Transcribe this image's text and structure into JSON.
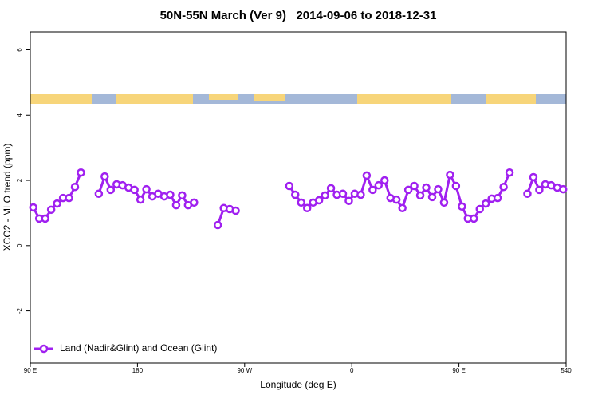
{
  "chart_data": {
    "type": "line",
    "title": "50N-55N March (Ver 9)   2014-09-06 to 2018-12-31",
    "xlabel": "Longitude (deg E)",
    "ylabel": "XCO2 - MLO trend (ppm)",
    "x": [
      92.5,
      97.5,
      102.5,
      107.5,
      112.5,
      117.5,
      122.5,
      127.5,
      132.5,
      137.5,
      147.5,
      152.5,
      157.5,
      162.5,
      167.5,
      172.5,
      177.5,
      182.5,
      187.5,
      192.5,
      197.5,
      202.5,
      207.5,
      212.5,
      217.5,
      222.5,
      227.5,
      237.5,
      247.5,
      252.5,
      257.5,
      262.5,
      285,
      307.5,
      312.5,
      317.5,
      322.5,
      327.5,
      332.5,
      337.5,
      342.5,
      347.5,
      352.5,
      357.5,
      362.5,
      367.5,
      372.5,
      377.5,
      382.5,
      387.5,
      392.5,
      397.5,
      402.5,
      407.5,
      412.5,
      417.5,
      422.5,
      427.5,
      432.5,
      437.5,
      442.5,
      447.5,
      452.5,
      457.5,
      462.5,
      467.5,
      472.5,
      477.5,
      482.5,
      487.5,
      492.5,
      500,
      507.5,
      512.5,
      517.5,
      522.5,
      527.5,
      532.5,
      537.5
    ],
    "series": [
      {
        "name": "Land (Nadir&Glint) and Ocean (Glint)",
        "color": "#a020f0",
        "values": [
          1.17,
          0.83,
          0.83,
          1.1,
          1.29,
          1.46,
          1.46,
          1.8,
          2.24,
          null,
          1.59,
          2.12,
          1.71,
          1.88,
          1.85,
          1.78,
          1.71,
          1.41,
          1.73,
          1.51,
          1.59,
          1.51,
          1.56,
          1.24,
          1.54,
          1.24,
          1.32,
          null,
          0.63,
          1.15,
          1.12,
          1.07,
          null,
          1.83,
          1.56,
          1.32,
          1.15,
          1.32,
          1.39,
          1.54,
          1.76,
          1.56,
          1.59,
          1.37,
          1.59,
          1.56,
          2.15,
          1.71,
          1.85,
          2.0,
          1.46,
          1.41,
          1.15,
          1.71,
          1.83,
          1.54,
          1.78,
          1.49,
          1.73,
          1.32,
          2.17,
          1.83,
          1.2,
          0.83,
          0.83,
          1.12,
          1.29,
          1.44,
          1.46,
          1.8,
          2.24,
          null,
          1.59,
          2.1,
          1.71,
          1.88,
          1.85,
          1.78,
          1.73
        ]
      }
    ],
    "xlim": [
      90,
      540
    ],
    "xticks": [
      {
        "value": 90,
        "label": "90 E"
      },
      180,
      {
        "value": 270,
        "label": "90 W"
      },
      {
        "value": 360,
        "label": "0"
      },
      {
        "value": 450,
        "label": "90 E"
      },
      540
    ],
    "ylim": [
      -3.6,
      6.55
    ],
    "yticks": [
      -2,
      0,
      2,
      4,
      6
    ],
    "legend": "bottomleft",
    "grid": false
  }
}
